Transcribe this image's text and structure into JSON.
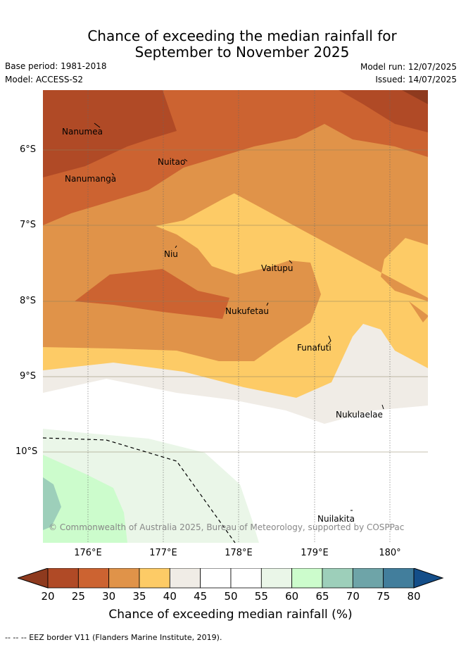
{
  "header": {
    "title_line1": "Chance of exceeding the median rainfall for",
    "title_line2": "September to November 2025",
    "base_period": "Base period: 1981-2018",
    "model": "Model: ACCESS-S2",
    "model_run": "Model run: 12/07/2025",
    "issued": "Issued: 14/07/2025"
  },
  "map": {
    "places": [
      {
        "name": "Nanumea",
        "lon": 176.05,
        "lat": -5.67
      },
      {
        "name": "Nuitao",
        "lon": 177.3,
        "lat": -6.1
      },
      {
        "name": "Nanumanga",
        "lon": 176.35,
        "lat": -6.3
      },
      {
        "name": "Niu",
        "lon": 177.15,
        "lat": -7.3
      },
      {
        "name": "Vaitupu",
        "lon": 178.68,
        "lat": -7.47
      },
      {
        "name": "Nukufetau",
        "lon": 178.38,
        "lat": -8.03
      },
      {
        "name": "Funafuti",
        "lon": 179.2,
        "lat": -8.52
      },
      {
        "name": "Nukulaelae",
        "lon": 179.85,
        "lat": -9.38
      },
      {
        "name": "Nuilakita",
        "lon": 179.5,
        "lat": -10.8
      }
    ],
    "lat_labels": [
      "6°S",
      "7°S",
      "8°S",
      "9°S",
      "10°S"
    ],
    "lon_labels": [
      "176°E",
      "177°E",
      "178°E",
      "179°E",
      "180°"
    ],
    "copyright": "© Commonwealth of Australia 2025, Bureau of Meteorology, supported by COSPPac"
  },
  "colorbar": {
    "ticks": [
      "20",
      "25",
      "30",
      "35",
      "40",
      "45",
      "50",
      "55",
      "60",
      "65",
      "70",
      "75",
      "80"
    ],
    "colors": [
      "#8e3a1e",
      "#b04a26",
      "#cc6331",
      "#e09349",
      "#fdcb66",
      "#f0ece6",
      "#ffffff",
      "#ffffff",
      "#eaf6e8",
      "#ccfccc",
      "#9dcfba",
      "#6ea4a8",
      "#427e9c",
      "#144e89"
    ],
    "label": "Chance of exceeding median rainfall (%)"
  },
  "footer": {
    "legend_text": "-- -- -- EEZ border V11 (Flanders Marine Institute, 2019)."
  }
}
